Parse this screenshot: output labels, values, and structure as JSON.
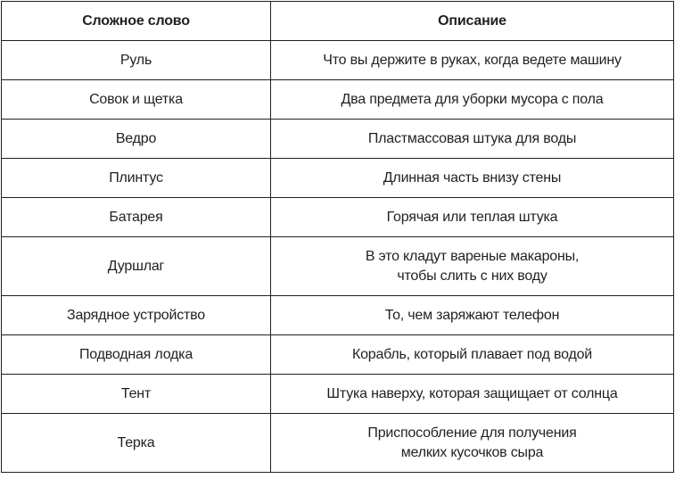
{
  "headers": {
    "word": "Сложное слово",
    "description": "Описание"
  },
  "rows": [
    {
      "word": "Руль",
      "desc1": "Что вы держите в руках, когда ведете машину",
      "desc2": ""
    },
    {
      "word": "Совок и щетка",
      "desc1": "Два предмета для уборки мусора с пола",
      "desc2": ""
    },
    {
      "word": "Ведро",
      "desc1": "Пластмассовая штука для воды",
      "desc2": ""
    },
    {
      "word": "Плинтус",
      "desc1": "Длинная часть внизу стены",
      "desc2": ""
    },
    {
      "word": "Батарея",
      "desc1": "Горячая или теплая штука",
      "desc2": ""
    },
    {
      "word": "Дуршлаг",
      "desc1": "В это кладут вареные макароны,",
      "desc2": "чтобы слить с них воду"
    },
    {
      "word": "Зарядное устройство",
      "desc1": "То, чем заряжают телефон",
      "desc2": ""
    },
    {
      "word": "Подводная лодка",
      "desc1": "Корабль, который плавает под водой",
      "desc2": ""
    },
    {
      "word": "Тент",
      "desc1": "Штука наверху, которая защищает от солнца",
      "desc2": ""
    },
    {
      "word": "Терка",
      "desc1": "Приспособление для получения",
      "desc2": "мелких кусочков сыра"
    }
  ]
}
